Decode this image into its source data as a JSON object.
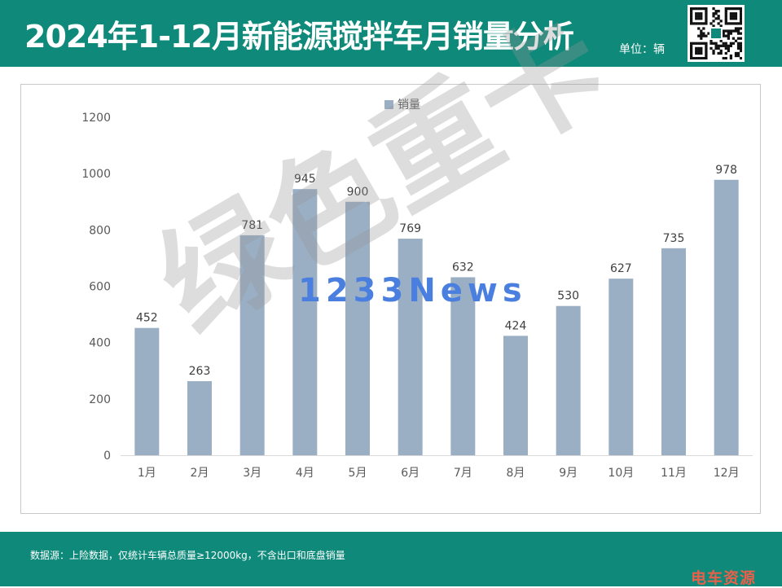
{
  "header": {
    "title": "2024年1-12月新能源搅拌车月销量分析",
    "unit": "单位：辆"
  },
  "chart_data": {
    "type": "bar",
    "categories": [
      "1月",
      "2月",
      "3月",
      "4月",
      "5月",
      "6月",
      "7月",
      "8月",
      "9月",
      "10月",
      "11月",
      "12月"
    ],
    "series": [
      {
        "name": "销量",
        "values": [
          452,
          263,
          781,
          945,
          900,
          769,
          632,
          424,
          530,
          627,
          735,
          978
        ]
      }
    ],
    "ylim": [
      0,
      1200
    ],
    "yticks": [
      0,
      200,
      400,
      600,
      800,
      1000,
      1200
    ],
    "legend_position": "top-center",
    "grid": false,
    "data_labels": true,
    "bar_color": "#9aafc4"
  },
  "watermarks": {
    "big": "绿色重卡",
    "small": "1233News"
  },
  "footer": {
    "source": "数据源：上险数据，仅统计车辆总质量≥12000kg，不含出口和底盘销量",
    "brand": "电车资源"
  },
  "colors": {
    "header_bg": "#0f8a7a",
    "footer_bg": "#0f8a7a",
    "bar": "#9aafc4",
    "brand": "#e8604a"
  },
  "icons": {
    "qr": "qr-code-icon"
  }
}
